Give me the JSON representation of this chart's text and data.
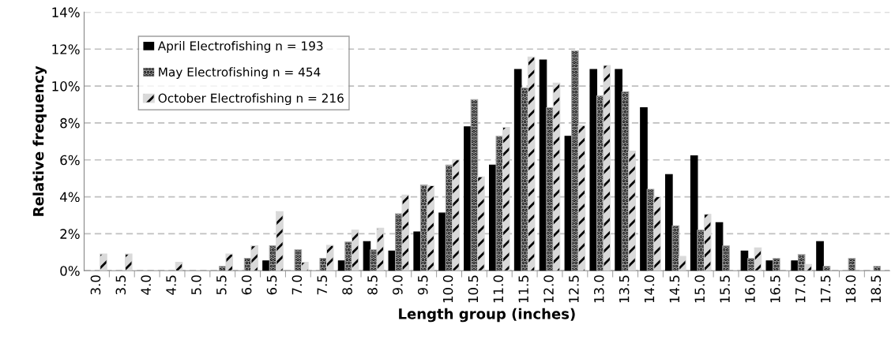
{
  "chart_data": {
    "type": "bar",
    "xlabel": "Length group (inches)",
    "ylabel": "Relative frequency",
    "categories": [
      "3.0",
      "3.5",
      "4.0",
      "4.5",
      "5.0",
      "5.5",
      "6.0",
      "6.5",
      "7.0",
      "7.5",
      "8.0",
      "8.5",
      "9.0",
      "9.5",
      "10.0",
      "10.5",
      "11.0",
      "11.5",
      "12.0",
      "12.5",
      "13.0",
      "13.5",
      "14.0",
      "14.5",
      "15.0",
      "15.5",
      "16.0",
      "16.5",
      "17.0",
      "17.5",
      "18.0",
      "18.5"
    ],
    "series": [
      {
        "name": "April Electrofishing n = 193",
        "color": "#000000",
        "values": [
          0,
          0,
          0,
          0,
          0,
          0,
          0,
          0.53,
          0,
          0,
          0.53,
          1.58,
          1.06,
          2.1,
          3.12,
          7.79,
          5.72,
          10.9,
          11.41,
          7.28,
          10.9,
          10.9,
          8.83,
          5.21,
          6.22,
          2.6,
          1.06,
          0.53,
          0.53,
          1.58,
          0,
          0
        ]
      },
      {
        "name": "May Electrofishing n = 454",
        "color": "#a6a6a6",
        "values": [
          0,
          0,
          0,
          0,
          0,
          0.23,
          0.67,
          1.35,
          1.13,
          0.67,
          1.55,
          1.13,
          3.08,
          4.64,
          5.72,
          9.26,
          7.28,
          9.9,
          8.83,
          11.9,
          9.47,
          9.69,
          4.41,
          2.43,
          2.2,
          1.34,
          0.66,
          0.66,
          0.87,
          0.23,
          0.66,
          0.23
        ]
      },
      {
        "name": "October Electrofishing n = 216",
        "color": "#d9d9d9",
        "values": [
          0.9,
          0.9,
          0,
          0.45,
          0,
          0.9,
          1.35,
          3.2,
          0.45,
          1.37,
          2.2,
          2.3,
          4.1,
          4.6,
          6.0,
          5.08,
          7.76,
          11.57,
          10.16,
          7.86,
          11.11,
          6.48,
          4.0,
          0.77,
          3.05,
          0,
          1.23,
          0,
          0.34,
          0,
          0,
          0
        ]
      }
    ],
    "ylim": [
      0,
      14
    ],
    "yticks": [
      {
        "value": 0,
        "label": "0%"
      },
      {
        "value": 2,
        "label": "2%"
      },
      {
        "value": 4,
        "label": "4%"
      },
      {
        "value": 6,
        "label": "6%"
      },
      {
        "value": 8,
        "label": "8%"
      },
      {
        "value": 10,
        "label": "10%"
      },
      {
        "value": 12,
        "label": "12%"
      },
      {
        "value": 14,
        "label": "14%"
      }
    ],
    "grid": "y",
    "legend": "top left"
  }
}
